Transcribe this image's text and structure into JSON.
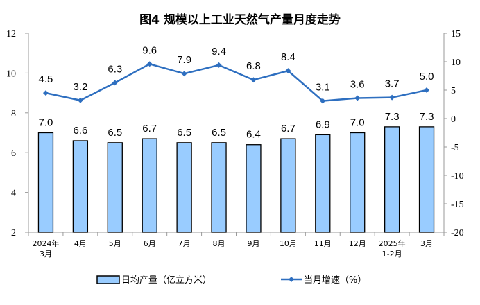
{
  "chart_data": {
    "type": "bar+line",
    "title": "图4  规模以上工业天然气产量月度走势",
    "categories": [
      [
        "2024年",
        "3月"
      ],
      [
        "4月"
      ],
      [
        "5月"
      ],
      [
        "6月"
      ],
      [
        "7月"
      ],
      [
        "8月"
      ],
      [
        "9月"
      ],
      [
        "10月"
      ],
      [
        "11月"
      ],
      [
        "12月"
      ],
      [
        "2025年",
        "1-2月"
      ],
      [
        "3月"
      ]
    ],
    "series": [
      {
        "name": "日均产量（亿立方米）",
        "type": "bar",
        "axis": "left",
        "values": [
          7.0,
          6.6,
          6.5,
          6.7,
          6.5,
          6.5,
          6.4,
          6.7,
          6.9,
          7.0,
          7.3,
          7.3
        ],
        "color": "#99CCFF"
      },
      {
        "name": "当月增速（%）",
        "type": "line",
        "axis": "right",
        "values": [
          4.5,
          3.2,
          6.3,
          9.6,
          7.9,
          9.4,
          6.8,
          8.4,
          3.1,
          3.6,
          3.7,
          5.0
        ],
        "color": "#2E6FC0"
      }
    ],
    "left_axis": {
      "range": [
        2,
        12
      ],
      "ticks": [
        2,
        4,
        6,
        8,
        10,
        12
      ]
    },
    "right_axis": {
      "range": [
        -20,
        15
      ],
      "ticks": [
        -20,
        -15,
        -10,
        -5,
        0,
        5,
        10,
        15
      ]
    },
    "legend_position": "bottom",
    "grid": false
  }
}
